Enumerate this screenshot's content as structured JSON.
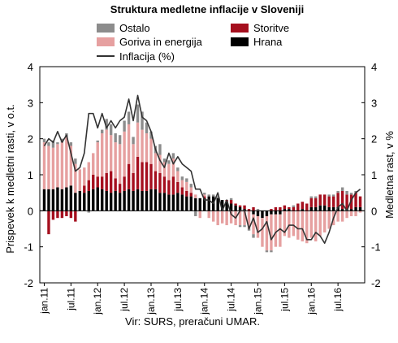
{
  "chart_data": {
    "type": "bar",
    "stacked": true,
    "title": "Struktura medletne inflacije v Sloveniji",
    "ylabel_left": "Prispevek k medletni rasti, v o.t.",
    "ylabel_right": "Medletna rast, v %",
    "source": "Vir: SURS, preračuni UMAR.",
    "ylim": [
      -2,
      4
    ],
    "yticks": [
      "-2",
      "-1",
      "0",
      "1",
      "2",
      "3",
      "4"
    ],
    "grid": false,
    "legend_placement": "top",
    "x_start": "2011-01",
    "x_end": "2016-12",
    "x_tick_labels": [
      "jan.11",
      "jul.11",
      "jan.12",
      "jul.12",
      "jan.13",
      "jul.13",
      "jan.14",
      "jul.14",
      "jan.15",
      "jul.15",
      "jan.16",
      "jul.16"
    ],
    "series": [
      {
        "name": "Hrana",
        "kind": "bar",
        "color": "#000000",
        "values": [
          0.6,
          0.6,
          0.6,
          0.65,
          0.6,
          0.65,
          0.7,
          0.5,
          0.55,
          0.5,
          0.55,
          0.6,
          0.65,
          0.6,
          0.55,
          0.5,
          0.55,
          0.5,
          0.55,
          0.6,
          0.55,
          0.6,
          0.55,
          0.55,
          0.6,
          0.6,
          0.5,
          0.5,
          0.45,
          0.45,
          0.5,
          0.45,
          0.4,
          0.4,
          0.35,
          0.35,
          0.35,
          0.4,
          0.4,
          0.35,
          0.3,
          0.25,
          0.2,
          0.15,
          0.1,
          0.05,
          0.0,
          -0.1,
          -0.15,
          -0.2,
          -0.15,
          -0.1,
          -0.1,
          -0.1,
          0.05,
          0.05,
          0.0,
          0.0,
          0.05,
          0.0,
          0.1,
          0.1,
          0.15,
          0.15,
          0.1,
          0.1,
          0.1,
          0.05,
          0.05,
          0.05,
          0.1,
          0.1
        ]
      },
      {
        "name": "Storitve",
        "kind": "bar",
        "color": "#a50f1e",
        "values": [
          0.0,
          -0.65,
          -0.25,
          -0.2,
          -0.2,
          -0.15,
          -0.2,
          -0.3,
          0.0,
          0.2,
          0.3,
          0.4,
          0.3,
          0.35,
          0.5,
          0.6,
          0.35,
          0.25,
          0.4,
          0.7,
          0.5,
          0.9,
          0.8,
          0.8,
          0.7,
          0.5,
          0.55,
          0.45,
          0.4,
          0.5,
          0.3,
          0.2,
          0.15,
          0.1,
          0.0,
          0.0,
          0.05,
          0.0,
          0.0,
          0.0,
          0.0,
          0.05,
          0.1,
          0.05,
          0.05,
          0.1,
          0.05,
          0.1,
          0.0,
          0.0,
          0.0,
          0.05,
          0.1,
          0.1,
          0.1,
          0.05,
          0.1,
          0.2,
          0.2,
          0.2,
          0.25,
          0.25,
          0.3,
          0.3,
          0.3,
          0.3,
          0.4,
          0.5,
          0.4,
          0.4,
          0.4,
          0.3
        ]
      },
      {
        "name": "Goriva in energija",
        "kind": "bar",
        "color": "#e6a0a0",
        "values": [
          1.3,
          1.2,
          1.15,
          1.2,
          1.3,
          1.4,
          1.1,
          0.8,
          0.6,
          0.5,
          0.5,
          0.6,
          0.95,
          1.2,
          1.2,
          1.0,
          1.0,
          1.1,
          1.25,
          1.1,
          0.8,
          0.95,
          0.9,
          0.8,
          0.7,
          0.5,
          0.5,
          0.4,
          0.45,
          0.5,
          0.3,
          0.2,
          0.25,
          0.15,
          0.1,
          -0.2,
          0.05,
          -0.2,
          -0.3,
          -0.4,
          -0.35,
          -0.4,
          -0.35,
          -0.4,
          -0.4,
          -0.4,
          -0.5,
          -0.55,
          -0.6,
          -0.8,
          -0.95,
          -1.0,
          -0.9,
          -0.9,
          -0.7,
          -0.75,
          -0.7,
          -0.8,
          -0.85,
          -0.9,
          -0.75,
          -0.85,
          -0.7,
          -0.6,
          -0.5,
          -0.4,
          -0.3,
          -0.3,
          -0.2,
          -0.15,
          -0.15,
          -0.05
        ]
      },
      {
        "name": "Ostalo",
        "kind": "bar",
        "color": "#8c8c8c",
        "values": [
          0.1,
          0.1,
          0.2,
          0.05,
          0.1,
          0.1,
          0.1,
          0.15,
          0.0,
          0.0,
          -0.05,
          0.0,
          0.05,
          0.1,
          0.3,
          0.3,
          0.25,
          0.25,
          0.3,
          0.35,
          0.2,
          0.5,
          0.5,
          0.3,
          0.2,
          0.2,
          0.3,
          0.1,
          0.1,
          0.15,
          0.1,
          0.1,
          0.1,
          0.1,
          -0.15,
          0.0,
          0.05,
          0.05,
          0.05,
          0.05,
          0.0,
          0.0,
          0.05,
          0.0,
          -0.05,
          -0.05,
          -0.05,
          -0.1,
          0.05,
          0.0,
          -0.05,
          -0.05,
          0.0,
          0.0,
          0.0,
          0.0,
          0.05,
          0.0,
          0.0,
          0.0,
          0.05,
          0.05,
          0.0,
          0.0,
          0.05,
          0.05,
          0.05,
          0.1,
          0.1,
          0.05,
          0.05,
          0.0
        ]
      },
      {
        "name": "Inflacija (%)",
        "kind": "line",
        "color": "#333333",
        "values": [
          1.8,
          2.0,
          1.9,
          2.2,
          1.9,
          2.1,
          1.6,
          1.1,
          1.2,
          1.6,
          2.7,
          2.7,
          2.3,
          2.7,
          2.3,
          2.5,
          2.3,
          2.5,
          2.6,
          3.1,
          2.5,
          3.2,
          2.6,
          2.5,
          2.2,
          1.7,
          1.4,
          1.2,
          1.6,
          1.3,
          1.5,
          1.3,
          1.2,
          1.1,
          0.6,
          0.6,
          0.3,
          0.3,
          0.2,
          0.5,
          0.0,
          0.3,
          -0.1,
          -0.2,
          0.0,
          0.0,
          -0.5,
          -0.2,
          -0.6,
          -0.5,
          -0.3,
          -0.8,
          -0.6,
          -0.5,
          -0.6,
          -0.4,
          -0.4,
          -0.5,
          -0.5,
          -0.8,
          -0.8,
          -0.6,
          -0.7,
          -0.9,
          -0.6,
          -0.2,
          0.1,
          0.2,
          0.0,
          0.3,
          0.5,
          0.6
        ]
      }
    ],
    "legend": [
      {
        "name": "Ostalo",
        "kind": "box",
        "color": "#8c8c8c"
      },
      {
        "name": "Storitve",
        "kind": "box",
        "color": "#a50f1e"
      },
      {
        "name": "Goriva in energija",
        "kind": "box",
        "color": "#e6a0a0"
      },
      {
        "name": "Hrana",
        "kind": "box",
        "color": "#000000"
      },
      {
        "name": "Inflacija (%)",
        "kind": "line",
        "color": "#333333"
      }
    ]
  }
}
